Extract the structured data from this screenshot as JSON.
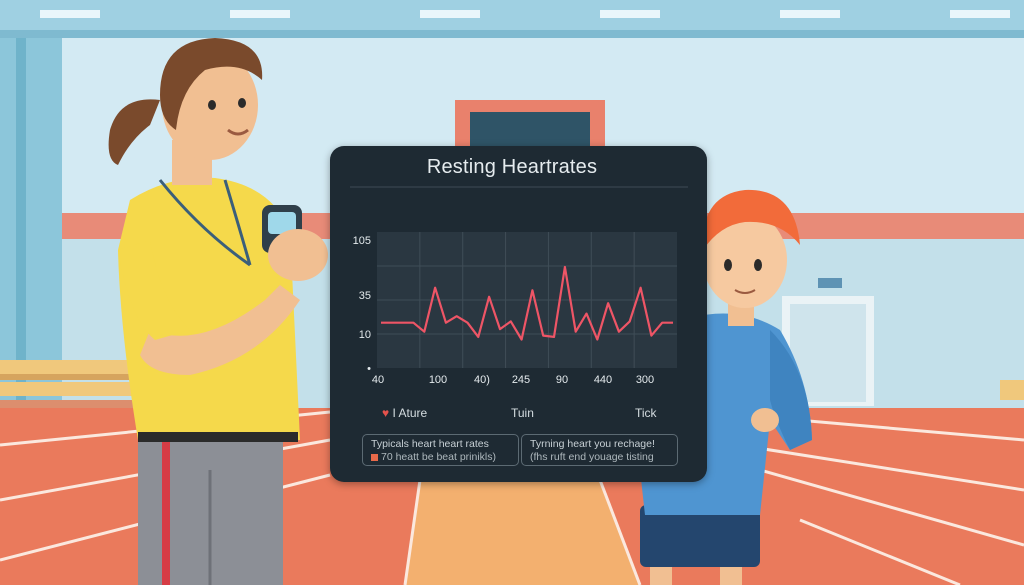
{
  "chart_data": {
    "type": "line",
    "title": "Resting Heartrates",
    "ytick_labels": [
      "105",
      "35",
      "10",
      "•"
    ],
    "xtick_labels": [
      "40",
      "100",
      "40)",
      "245",
      "90",
      "440",
      "300"
    ],
    "series": [
      {
        "color": "#ee5566",
        "values": [
          35,
          35,
          35,
          35,
          28,
          62,
          35,
          40,
          35,
          24,
          55,
          30,
          36,
          22,
          60,
          25,
          24,
          78,
          28,
          42,
          22,
          50,
          28,
          36,
          62,
          25,
          35,
          35
        ]
      }
    ],
    "ylim": [
      0,
      105
    ],
    "grid": true
  },
  "legend_items": [
    {
      "icon": "heart-icon",
      "label": "I Ature"
    },
    {
      "label": "Tuin"
    },
    {
      "label": "Tick"
    }
  ],
  "info_boxes": [
    {
      "line1": "Typicals heart heart rates",
      "line2": "70 heatt be beat prinikls)"
    },
    {
      "line1": "Tyrning heart you rechage!",
      "line2": "(fhs ruft end youage tisting"
    }
  ],
  "colors": {
    "panel_bg": "#1e2a33",
    "plot_bg": "#2a3741",
    "line": "#ee5566",
    "track": "#ea7a5c"
  }
}
